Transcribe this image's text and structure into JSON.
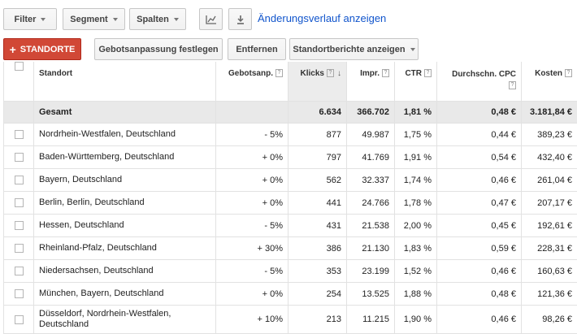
{
  "toolbar": {
    "filter_label": "Filter",
    "segment_label": "Segment",
    "columns_label": "Spalten",
    "chart_icon": "chart-icon",
    "download_icon": "download-icon",
    "history_link": "Änderungsverlauf anzeigen"
  },
  "actions": {
    "add_locations": "STANDORTE",
    "bid_adjust": "Gebotsanpassung festlegen",
    "remove": "Entfernen",
    "reports": "Standortberichte anzeigen"
  },
  "table": {
    "headers": {
      "location": "Standort",
      "bid_adj": "Gebotsanp.",
      "clicks": "Klicks",
      "impr": "Impr.",
      "ctr": "CTR",
      "cpc": "Durchschn. CPC",
      "cost": "Kosten"
    },
    "total": {
      "label": "Gesamt",
      "clicks": "6.634",
      "impr": "366.702",
      "ctr": "1,81 %",
      "cpc": "0,48 €",
      "cost": "3.181,84 €"
    },
    "rows": [
      {
        "location": "Nordrhein-Westfalen, Deutschland",
        "bid": "- 5%",
        "clicks": "877",
        "impr": "49.987",
        "ctr": "1,75 %",
        "cpc": "0,44 €",
        "cost": "389,23 €"
      },
      {
        "location": "Baden-Württemberg, Deutschland",
        "bid": "+ 0%",
        "clicks": "797",
        "impr": "41.769",
        "ctr": "1,91 %",
        "cpc": "0,54 €",
        "cost": "432,40 €"
      },
      {
        "location": "Bayern, Deutschland",
        "bid": "+ 0%",
        "clicks": "562",
        "impr": "32.337",
        "ctr": "1,74 %",
        "cpc": "0,46 €",
        "cost": "261,04 €"
      },
      {
        "location": "Berlin, Berlin, Deutschland",
        "bid": "+ 0%",
        "clicks": "441",
        "impr": "24.766",
        "ctr": "1,78 %",
        "cpc": "0,47 €",
        "cost": "207,17 €"
      },
      {
        "location": "Hessen, Deutschland",
        "bid": "- 5%",
        "clicks": "431",
        "impr": "21.538",
        "ctr": "2,00 %",
        "cpc": "0,45 €",
        "cost": "192,61 €"
      },
      {
        "location": "Rheinland-Pfalz, Deutschland",
        "bid": "+ 30%",
        "clicks": "386",
        "impr": "21.130",
        "ctr": "1,83 %",
        "cpc": "0,59 €",
        "cost": "228,31 €"
      },
      {
        "location": "Niedersachsen, Deutschland",
        "bid": "- 5%",
        "clicks": "353",
        "impr": "23.199",
        "ctr": "1,52 %",
        "cpc": "0,46 €",
        "cost": "160,63 €"
      },
      {
        "location": "München, Bayern, Deutschland",
        "bid": "+ 0%",
        "clicks": "254",
        "impr": "13.525",
        "ctr": "1,88 %",
        "cpc": "0,48 €",
        "cost": "121,36 €"
      },
      {
        "location": "Düsseldorf, Nordrhein-Westfalen, Deutschland",
        "bid": "+ 10%",
        "clicks": "213",
        "impr": "11.215",
        "ctr": "1,90 %",
        "cpc": "0,46 €",
        "cost": "98,26 €"
      }
    ]
  },
  "colors": {
    "accent_red": "#d14836",
    "link_blue": "#1155cc",
    "sorted_header": "#ececec"
  }
}
